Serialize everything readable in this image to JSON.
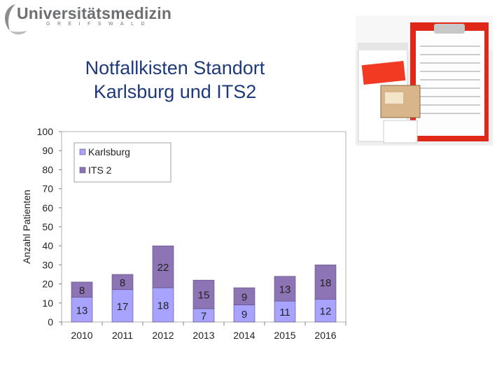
{
  "logo": {
    "name": "Universitätsmedizin",
    "location": "GREIFSWALD"
  },
  "title": {
    "line1": "Notfallkisten Standort",
    "line2": "Karlsburg und ITS2"
  },
  "colors": {
    "karlsburg": "#a7a3ff",
    "its2": "#8d74b4",
    "title": "#1f3a7a",
    "clipboard": "#e02818"
  },
  "chart_data": {
    "type": "bar",
    "stacked": true,
    "categories": [
      "2010",
      "2011",
      "2012",
      "2013",
      "2014",
      "2015",
      "2016"
    ],
    "series": [
      {
        "name": "Karlsburg",
        "values": [
          13,
          17,
          18,
          7,
          9,
          11,
          12
        ]
      },
      {
        "name": "ITS 2",
        "values": [
          8,
          8,
          22,
          15,
          9,
          13,
          18
        ]
      }
    ],
    "ylabel": "Anzahl Patienten",
    "xlabel": "",
    "ylim": [
      0,
      100
    ],
    "yticks": [
      0,
      10,
      20,
      30,
      40,
      50,
      60,
      70,
      80,
      90,
      100
    ],
    "legend_position": "top-left",
    "grid": false
  }
}
